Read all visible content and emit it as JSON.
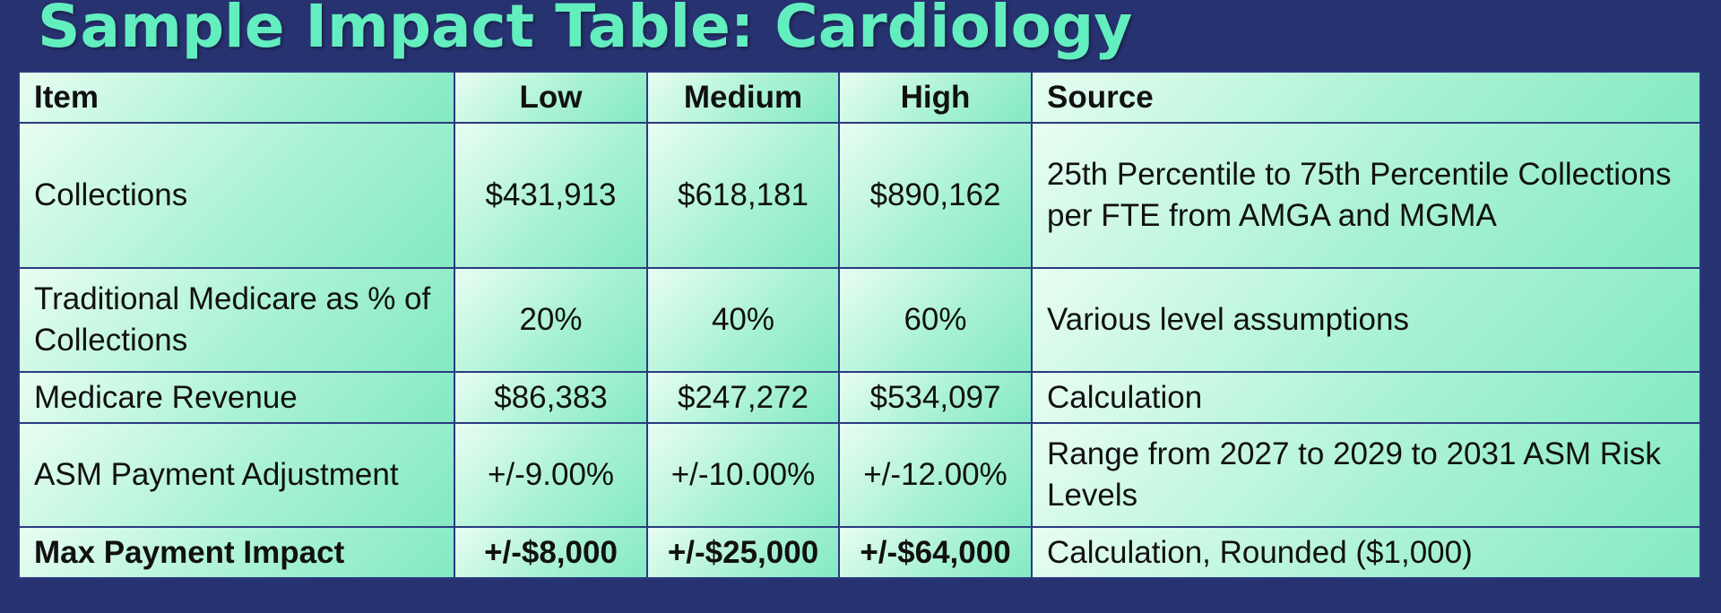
{
  "title": "Sample Impact Table: Cardiology",
  "table": {
    "headers": {
      "item": "Item",
      "low": "Low",
      "medium": "Medium",
      "high": "High",
      "source": "Source"
    },
    "rows": [
      {
        "item": "Collections",
        "low": "$431,913",
        "medium": "$618,181",
        "high": "$890,162",
        "source": "25th Percentile to 75th Percentile Collections per FTE from AMGA and MGMA"
      },
      {
        "item": "Traditional Medicare as % of Collections",
        "low": "20%",
        "medium": "40%",
        "high": "60%",
        "source": "Various level assumptions"
      },
      {
        "item": "Medicare Revenue",
        "low": "$86,383",
        "medium": "$247,272",
        "high": "$534,097",
        "source": "Calculation"
      },
      {
        "item": "ASM Payment Adjustment",
        "low": "+/-9.00%",
        "medium": "+/-10.00%",
        "high": "+/-12.00%",
        "source": "Range from 2027 to 2029 to 2031 ASM Risk Levels"
      },
      {
        "item": "Max Payment Impact",
        "low": "+/-$8,000",
        "medium": "+/-$25,000",
        "high": "+/-$64,000",
        "source": "Calculation, Rounded ($1,000)"
      }
    ]
  },
  "colors": {
    "background": "#273270",
    "title": "#63eec0",
    "cell_light": "#e8fdf2",
    "cell_dark": "#84e9c4",
    "border": "#2b3a80"
  }
}
